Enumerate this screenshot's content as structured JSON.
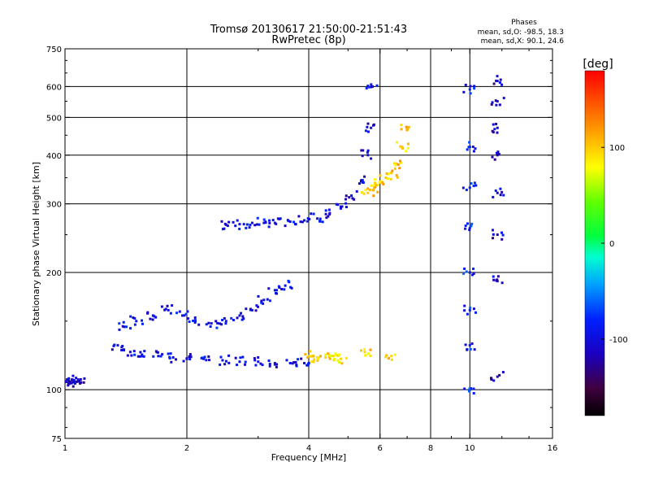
{
  "header": {
    "title_line1": "Tromsø 20130617 21:50:00-21:51:43",
    "title_line2": "RwPretec (8p)"
  },
  "stats": {
    "heading": "Phases",
    "line1": "mean, sd,O: -98.5, 18.3",
    "line2": "mean, sd,X:  90.1, 24.6"
  },
  "colorbar": {
    "unit_label": "[deg]",
    "ticks": [
      "100",
      "0",
      "-100"
    ],
    "tick_values": [
      100,
      0,
      -100
    ],
    "range": [
      -180,
      180
    ]
  },
  "chart_data": {
    "type": "scatter",
    "xlabel": "Frequency [MHz]",
    "ylabel": "Stationary phase Virtual Height [km]",
    "xscale": "log",
    "yscale": "log",
    "xlim": [
      1,
      16
    ],
    "ylim": [
      75,
      750
    ],
    "xticks": [
      1,
      2,
      4,
      6,
      8,
      10,
      16
    ],
    "xtick_labels": [
      "1",
      "2",
      "4",
      "6",
      "8",
      "10",
      "16"
    ],
    "yticks": [
      75,
      100,
      200,
      300,
      400,
      500,
      600,
      750
    ],
    "ytick_labels": [
      "75",
      "100",
      "200",
      "300",
      "400",
      "500",
      "600",
      "750"
    ],
    "grid_x": [
      2,
      4,
      6,
      8,
      10
    ],
    "grid_y": [
      100,
      200,
      300,
      400,
      500,
      600
    ],
    "color_scale": "phase in degrees, -180 to 180",
    "traces": [
      {
        "x": [
          1.0,
          1.02,
          1.04,
          1.06,
          1.08
        ],
        "y": [
          105,
          104,
          106,
          104,
          105
        ],
        "phase": -110
      },
      {
        "x": [
          1.35,
          1.45,
          1.55,
          1.7,
          1.85,
          2.0,
          2.2,
          2.45,
          2.7,
          3.0,
          3.3,
          3.6,
          3.9
        ],
        "y": [
          130,
          125,
          123,
          122,
          121,
          120,
          120,
          119,
          118,
          118,
          117,
          117,
          117
        ],
        "phase": -100
      },
      {
        "x": [
          1.4,
          1.5,
          1.65,
          1.8,
          1.95,
          2.1,
          2.3,
          2.5,
          2.7,
          2.9,
          3.1,
          3.3,
          3.5
        ],
        "y": [
          145,
          150,
          155,
          160,
          155,
          150,
          148,
          150,
          155,
          160,
          170,
          180,
          185
        ],
        "phase": -95
      },
      {
        "x": [
          2.5,
          2.7,
          2.9,
          3.1,
          3.3,
          3.6,
          3.9,
          4.2,
          4.5,
          4.8,
          5.1,
          5.4,
          5.6,
          5.7,
          5.75
        ],
        "y": [
          265,
          266,
          268,
          268,
          268,
          270,
          272,
          275,
          282,
          295,
          315,
          345,
          400,
          470,
          600
        ],
        "phase": -100
      },
      {
        "x": [
          5.6,
          5.8,
          6.0,
          6.2,
          6.4,
          6.6,
          6.8,
          7.0
        ],
        "y": [
          320,
          330,
          340,
          350,
          360,
          380,
          420,
          470
        ],
        "phase": 100
      },
      {
        "x": [
          4.0,
          4.2,
          4.4,
          4.6,
          4.8,
          5.5,
          6.4
        ],
        "y": [
          122,
          121,
          121,
          122,
          120,
          125,
          122
        ],
        "phase": 95
      },
      {
        "x": [
          10.0,
          10.0,
          10.0,
          10.0,
          10.0,
          10.0,
          10.0,
          10.0
        ],
        "y": [
          100,
          130,
          160,
          200,
          260,
          330,
          420,
          590
        ],
        "phase": -85
      },
      {
        "x": [
          11.7,
          11.7,
          11.7,
          11.7,
          11.7,
          11.7,
          11.7,
          11.7
        ],
        "y": [
          108,
          190,
          250,
          320,
          400,
          470,
          550,
          620
        ],
        "phase": -110
      }
    ]
  }
}
